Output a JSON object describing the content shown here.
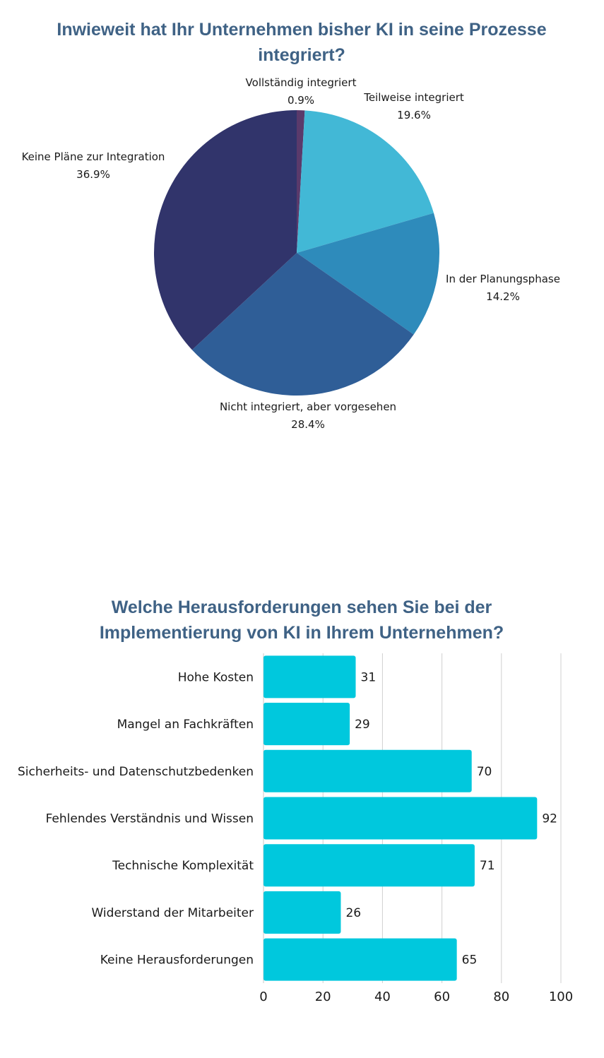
{
  "chart_data": [
    {
      "type": "pie",
      "title": "Inwieweit hat Ihr Unternehmen bisher KI in seine Prozesse integriert?",
      "slices": [
        {
          "label": "Vollständig integriert",
          "value": 0.9,
          "value_label": "0.9%",
          "color": "#5a3a6b"
        },
        {
          "label": "Teilweise integriert",
          "value": 19.6,
          "value_label": "19.6%",
          "color": "#42b8d6"
        },
        {
          "label": "In der Planungsphase",
          "value": 14.2,
          "value_label": "14.2%",
          "color": "#2e8bbb"
        },
        {
          "label": "Nicht integriert, aber vorgesehen",
          "value": 28.4,
          "value_label": "28.4%",
          "color": "#2f5e97"
        },
        {
          "label": "Keine Pläne zur Integration",
          "value": 36.9,
          "value_label": "36.9%",
          "color": "#31346b"
        }
      ]
    },
    {
      "type": "bar",
      "orientation": "horizontal",
      "title": "Welche Herausforderungen sehen Sie bei der Implementierung von KI in Ihrem Unternehmen?",
      "categories": [
        "Hohe Kosten",
        "Mangel an Fachkräften",
        "Sicherheits- und Datenschutzbedenken",
        "Fehlendes Verständnis und Wissen",
        "Technische Komplexität",
        "Widerstand der Mitarbeiter",
        "Keine Herausforderungen"
      ],
      "values": [
        31,
        29,
        70,
        92,
        71,
        26,
        65
      ],
      "xlim": [
        0,
        100
      ],
      "xticks": [
        0,
        20,
        40,
        60,
        80,
        100
      ],
      "grid": true,
      "bar_color": "#00c8dd"
    }
  ]
}
